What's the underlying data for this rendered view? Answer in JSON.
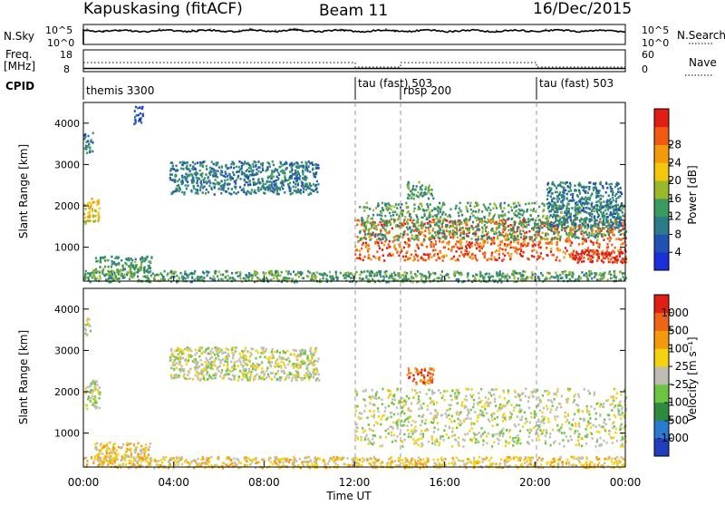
{
  "header": {
    "station": "Kapuskasing (fitACF)",
    "beam": "Beam 11",
    "date": "16/Dec/2015"
  },
  "top_panels": {
    "nsky_label": "N.Sky",
    "nsky_ticks": [
      "10^5",
      "10^0"
    ],
    "nsearch_label": "N.Search",
    "freq_label_1": "Freq.",
    "freq_label_2": "[MHz]",
    "freq_ticks": [
      "18",
      "8"
    ],
    "nave_label": "Nave",
    "nave_ticks": [
      "60",
      "0"
    ],
    "cpid_label": "CPID"
  },
  "cpid_segments": [
    {
      "label": "themis 3300",
      "start_hour": 0
    },
    {
      "label": "tau (fast) 503",
      "start_hour": 12
    },
    {
      "label": "rbsp 200",
      "start_hour": 14
    },
    {
      "label": "tau (fast) 503",
      "start_hour": 20
    }
  ],
  "chart_data": [
    {
      "type": "heatmap",
      "title": "",
      "xlabel": "Time UT",
      "ylabel": "Slant Range [km]",
      "x_ticks": [
        "00:00",
        "04:00",
        "08:00",
        "12:00",
        "16:00",
        "20:00",
        "00:00"
      ],
      "x_range_hours": [
        0,
        24
      ],
      "ylim": [
        180,
        4500
      ],
      "y_ticks": [
        1000,
        2000,
        3000,
        4000
      ],
      "colorbar": {
        "label": "Power [dB]",
        "ticks": [
          "4",
          "8",
          "12",
          "16",
          "20",
          "24",
          "28"
        ],
        "colors": [
          "#1a2fd8",
          "#2350b4",
          "#2d7a8a",
          "#3c9a5e",
          "#9ab82a",
          "#f2c80f",
          "#f59a0a",
          "#f05a14",
          "#e01e14"
        ]
      },
      "regions": [
        {
          "hours": [
            0.0,
            0.7
          ],
          "range_km": [
            1600,
            2200
          ],
          "level": 5
        },
        {
          "hours": [
            0.0,
            0.4
          ],
          "range_km": [
            3300,
            3800
          ],
          "level": 2
        },
        {
          "hours": [
            0.4,
            3.0
          ],
          "range_km": [
            400,
            800
          ],
          "level": 3
        },
        {
          "hours": [
            2.2,
            2.6
          ],
          "range_km": [
            4000,
            4450
          ],
          "level": 1
        },
        {
          "hours": [
            3.8,
            10.4
          ],
          "range_km": [
            2300,
            3100
          ],
          "level": 2
        },
        {
          "hours": [
            12.0,
            24.0
          ],
          "range_km": [
            700,
            1700
          ],
          "level": 7
        },
        {
          "hours": [
            12.2,
            24.0
          ],
          "range_km": [
            1200,
            2100
          ],
          "level": 3
        },
        {
          "hours": [
            14.3,
            15.5
          ],
          "range_km": [
            2200,
            2600
          ],
          "level": 3
        },
        {
          "hours": [
            20.5,
            23.8
          ],
          "range_km": [
            1500,
            2600
          ],
          "level": 2
        },
        {
          "hours": [
            21.5,
            24.0
          ],
          "range_km": [
            650,
            950
          ],
          "level": 8
        },
        {
          "hours": [
            0.0,
            24.0
          ],
          "range_km": [
            180,
            450
          ],
          "level": 3
        }
      ]
    },
    {
      "type": "heatmap",
      "title": "",
      "xlabel": "Time UT",
      "ylabel": "Slant Range [km]",
      "x_ticks": [
        "00:00",
        "04:00",
        "08:00",
        "12:00",
        "16:00",
        "20:00",
        "00:00"
      ],
      "x_range_hours": [
        0,
        24
      ],
      "ylim": [
        180,
        4500
      ],
      "y_ticks": [
        1000,
        2000,
        3000,
        4000
      ],
      "colorbar": {
        "label": "Velocity [m s⁻¹]",
        "ticks": [
          "1000",
          "500",
          "100",
          "25",
          "-25",
          "-100",
          "-500",
          "-1000"
        ],
        "colors": [
          "#1f3fbf",
          "#2a7ad0",
          "#2e8b3e",
          "#6cc442",
          "#bdbdb4",
          "#f5d20f",
          "#f59a0a",
          "#f0641a",
          "#e01e14"
        ]
      },
      "regions": [
        {
          "hours": [
            0.0,
            0.7
          ],
          "range_km": [
            1600,
            2300
          ],
          "level": 4
        },
        {
          "hours": [
            0.0,
            0.3
          ],
          "range_km": [
            3400,
            3800
          ],
          "level": 4
        },
        {
          "hours": [
            0.4,
            3.0
          ],
          "range_km": [
            350,
            800
          ],
          "level": 5
        },
        {
          "hours": [
            3.8,
            10.4
          ],
          "range_km": [
            2300,
            3100
          ],
          "level": 4
        },
        {
          "hours": [
            12.0,
            24.0
          ],
          "range_km": [
            700,
            2100
          ],
          "level": 4
        },
        {
          "hours": [
            14.3,
            15.5
          ],
          "range_km": [
            2200,
            2600
          ],
          "level": 7
        },
        {
          "hours": [
            0.0,
            24.0
          ],
          "range_km": [
            180,
            450
          ],
          "level": 5
        }
      ]
    }
  ]
}
